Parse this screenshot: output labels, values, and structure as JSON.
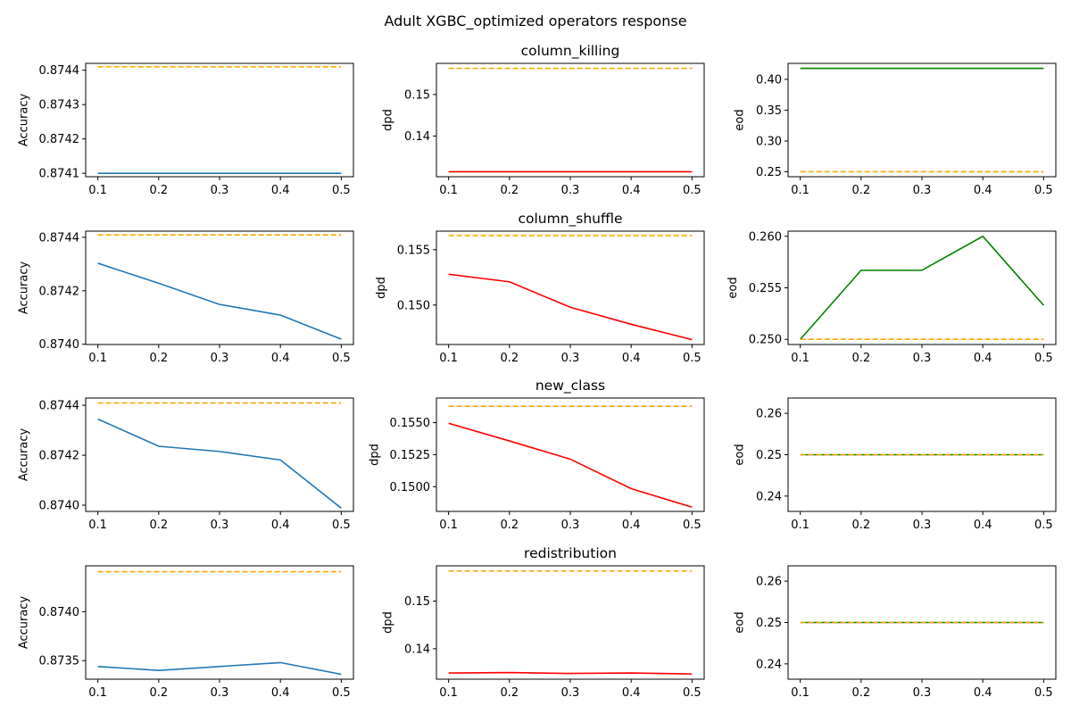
{
  "figure": {
    "title": "Adult XGBC_optimized operators response"
  },
  "colors": {
    "accuracy": "#1f77b4",
    "dpd": "#ff0000",
    "eod": "#008000",
    "baseline": "#ffa500"
  },
  "chart_data": [
    {
      "type": "line",
      "row": 0,
      "col": 0,
      "title": "",
      "xlabel": "",
      "ylabel": "Accuracy",
      "x": [
        0.1,
        0.2,
        0.3,
        0.4,
        0.5
      ],
      "xticks": [
        "0.1",
        "0.2",
        "0.3",
        "0.4",
        "0.5"
      ],
      "ylim": [
        0.87409,
        0.87442
      ],
      "yticks": [
        {
          "v": 0.8741,
          "label": "0.8741"
        },
        {
          "v": 0.8742,
          "label": "0.8742"
        },
        {
          "v": 0.8743,
          "label": "0.8743"
        },
        {
          "v": 0.8744,
          "label": "0.8744"
        }
      ],
      "series": [
        {
          "values": [
            0.8741,
            0.8741,
            0.8741,
            0.8741,
            0.8741
          ],
          "color": "#1f77b4",
          "style": "solid"
        },
        {
          "values": [
            0.87441,
            0.87441,
            0.87441,
            0.87441,
            0.87441
          ],
          "color": "#ffa500",
          "style": "dashed"
        }
      ]
    },
    {
      "type": "line",
      "row": 0,
      "col": 1,
      "title": "column_killing",
      "xlabel": "",
      "ylabel": "dpd",
      "x": [
        0.1,
        0.2,
        0.3,
        0.4,
        0.5
      ],
      "xticks": [
        "0.1",
        "0.2",
        "0.3",
        "0.4",
        "0.5"
      ],
      "ylim": [
        0.1302,
        0.1575
      ],
      "yticks": [
        {
          "v": 0.14,
          "label": "0.14"
        },
        {
          "v": 0.15,
          "label": "0.15"
        }
      ],
      "series": [
        {
          "values": [
            0.1314,
            0.1314,
            0.1314,
            0.1314,
            0.1314
          ],
          "color": "#ff0000",
          "style": "solid"
        },
        {
          "values": [
            0.1563,
            0.1563,
            0.1563,
            0.1563,
            0.1563
          ],
          "color": "#ffa500",
          "style": "dashed"
        }
      ]
    },
    {
      "type": "line",
      "row": 0,
      "col": 2,
      "title": "",
      "xlabel": "",
      "ylabel": "eod",
      "x": [
        0.1,
        0.2,
        0.3,
        0.4,
        0.5
      ],
      "xticks": [
        "0.1",
        "0.2",
        "0.3",
        "0.4",
        "0.5"
      ],
      "ylim": [
        0.242,
        0.426
      ],
      "yticks": [
        {
          "v": 0.25,
          "label": "0.25"
        },
        {
          "v": 0.3,
          "label": "0.30"
        },
        {
          "v": 0.35,
          "label": "0.35"
        },
        {
          "v": 0.4,
          "label": "0.40"
        }
      ],
      "series": [
        {
          "values": [
            0.418,
            0.418,
            0.418,
            0.418,
            0.418
          ],
          "color": "#008000",
          "style": "solid"
        },
        {
          "values": [
            0.25,
            0.25,
            0.25,
            0.25,
            0.25
          ],
          "color": "#ffa500",
          "style": "dashed"
        }
      ]
    },
    {
      "type": "line",
      "row": 1,
      "col": 0,
      "title": "",
      "xlabel": "",
      "ylabel": "Accuracy",
      "x": [
        0.1,
        0.2,
        0.3,
        0.4,
        0.5
      ],
      "xticks": [
        "0.1",
        "0.2",
        "0.3",
        "0.4",
        "0.5"
      ],
      "ylim": [
        0.873999,
        0.874423
      ],
      "yticks": [
        {
          "v": 0.874,
          "label": "0.8740"
        },
        {
          "v": 0.8742,
          "label": "0.8742"
        },
        {
          "v": 0.8744,
          "label": "0.8744"
        }
      ],
      "series": [
        {
          "values": [
            0.874303,
            0.874228,
            0.874149,
            0.874109,
            0.874019
          ],
          "color": "#1f77b4",
          "style": "solid"
        },
        {
          "values": [
            0.874409,
            0.874409,
            0.874409,
            0.874409,
            0.874409
          ],
          "color": "#ffa500",
          "style": "dashed"
        }
      ]
    },
    {
      "type": "line",
      "row": 1,
      "col": 1,
      "title": "column_shuffle",
      "xlabel": "",
      "ylabel": "dpd",
      "x": [
        0.1,
        0.2,
        0.3,
        0.4,
        0.5
      ],
      "xticks": [
        "0.1",
        "0.2",
        "0.3",
        "0.4",
        "0.5"
      ],
      "ylim": [
        0.14643,
        0.15668
      ],
      "yticks": [
        {
          "v": 0.15,
          "label": "0.150"
        },
        {
          "v": 0.155,
          "label": "0.155"
        }
      ],
      "series": [
        {
          "values": [
            0.15278,
            0.1521,
            0.1498,
            0.14826,
            0.14687
          ],
          "color": "#ff0000",
          "style": "solid"
        },
        {
          "values": [
            0.15628,
            0.15628,
            0.15628,
            0.15628,
            0.15628
          ],
          "color": "#ffa500",
          "style": "dashed"
        }
      ]
    },
    {
      "type": "line",
      "row": 1,
      "col": 2,
      "title": "",
      "xlabel": "",
      "ylabel": "eod",
      "x": [
        0.1,
        0.2,
        0.3,
        0.4,
        0.5
      ],
      "xticks": [
        "0.1",
        "0.2",
        "0.3",
        "0.4",
        "0.5"
      ],
      "ylim": [
        0.2495,
        0.2605
      ],
      "yticks": [
        {
          "v": 0.25,
          "label": "0.250"
        },
        {
          "v": 0.255,
          "label": "0.255"
        },
        {
          "v": 0.26,
          "label": "0.260"
        }
      ],
      "series": [
        {
          "values": [
            0.25,
            0.2567,
            0.2567,
            0.26,
            0.2533
          ],
          "color": "#008000",
          "style": "solid"
        },
        {
          "values": [
            0.25,
            0.25,
            0.25,
            0.25,
            0.25
          ],
          "color": "#ffa500",
          "style": "dashed"
        }
      ]
    },
    {
      "type": "line",
      "row": 2,
      "col": 0,
      "title": "",
      "xlabel": "",
      "ylabel": "Accuracy",
      "x": [
        0.1,
        0.2,
        0.3,
        0.4,
        0.5
      ],
      "xticks": [
        "0.1",
        "0.2",
        "0.3",
        "0.4",
        "0.5"
      ],
      "ylim": [
        0.873975,
        0.874429
      ],
      "yticks": [
        {
          "v": 0.874,
          "label": "0.8740"
        },
        {
          "v": 0.8742,
          "label": "0.8742"
        },
        {
          "v": 0.8744,
          "label": "0.8744"
        }
      ],
      "series": [
        {
          "values": [
            0.874345,
            0.874236,
            0.874215,
            0.874181,
            0.873988
          ],
          "color": "#1f77b4",
          "style": "solid"
        },
        {
          "values": [
            0.874409,
            0.874409,
            0.874409,
            0.874409,
            0.874409
          ],
          "color": "#ffa500",
          "style": "dashed"
        }
      ]
    },
    {
      "type": "line",
      "row": 2,
      "col": 1,
      "title": "new_class",
      "xlabel": "",
      "ylabel": "dpd",
      "x": [
        0.1,
        0.2,
        0.3,
        0.4,
        0.5
      ],
      "xticks": [
        "0.1",
        "0.2",
        "0.3",
        "0.4",
        "0.5"
      ],
      "ylim": [
        0.14807,
        0.15692
      ],
      "yticks": [
        {
          "v": 0.15,
          "label": "0.1500"
        },
        {
          "v": 0.1525,
          "label": "0.1525"
        },
        {
          "v": 0.155,
          "label": "0.1550"
        }
      ],
      "series": [
        {
          "values": [
            0.15495,
            0.15357,
            0.15215,
            0.14985,
            0.1484
          ],
          "color": "#ff0000",
          "style": "solid"
        },
        {
          "values": [
            0.15628,
            0.15628,
            0.15628,
            0.15628,
            0.15628
          ],
          "color": "#ffa500",
          "style": "dashed"
        }
      ]
    },
    {
      "type": "line",
      "row": 2,
      "col": 2,
      "title": "",
      "xlabel": "",
      "ylabel": "eod",
      "x": [
        0.1,
        0.2,
        0.3,
        0.4,
        0.5
      ],
      "xticks": [
        "0.1",
        "0.2",
        "0.3",
        "0.4",
        "0.5"
      ],
      "ylim": [
        0.2363,
        0.2637
      ],
      "yticks": [
        {
          "v": 0.24,
          "label": "0.24"
        },
        {
          "v": 0.25,
          "label": "0.25"
        },
        {
          "v": 0.26,
          "label": "0.26"
        }
      ],
      "series": [
        {
          "values": [
            0.25,
            0.25,
            0.25,
            0.25,
            0.25
          ],
          "color": "#008000",
          "style": "solid"
        },
        {
          "values": [
            0.25,
            0.25,
            0.25,
            0.25,
            0.25
          ],
          "color": "#ffa500",
          "style": "dashed"
        }
      ]
    },
    {
      "type": "line",
      "row": 3,
      "col": 0,
      "title": "",
      "xlabel": "",
      "ylabel": "Accuracy",
      "x": [
        0.1,
        0.2,
        0.3,
        0.4,
        0.5
      ],
      "xticks": [
        "0.1",
        "0.2",
        "0.3",
        "0.4",
        "0.5"
      ],
      "ylim": [
        0.87331,
        0.87447
      ],
      "yticks": [
        {
          "v": 0.8735,
          "label": "0.8735"
        },
        {
          "v": 0.874,
          "label": "0.8740"
        }
      ],
      "series": [
        {
          "values": [
            0.87344,
            0.8734,
            0.87344,
            0.87348,
            0.87336
          ],
          "color": "#1f77b4",
          "style": "solid"
        },
        {
          "values": [
            0.87441,
            0.87441,
            0.87441,
            0.87441,
            0.87441
          ],
          "color": "#ffa500",
          "style": "dashed"
        }
      ]
    },
    {
      "type": "line",
      "row": 3,
      "col": 1,
      "title": "redistribution",
      "xlabel": "",
      "ylabel": "dpd",
      "x": [
        0.1,
        0.2,
        0.3,
        0.4,
        0.5
      ],
      "xticks": [
        "0.1",
        "0.2",
        "0.3",
        "0.4",
        "0.5"
      ],
      "ylim": [
        0.1336,
        0.1574
      ],
      "yticks": [
        {
          "v": 0.14,
          "label": "0.14"
        },
        {
          "v": 0.15,
          "label": "0.15"
        }
      ],
      "series": [
        {
          "values": [
            0.1349,
            0.135,
            0.1348,
            0.1349,
            0.1347
          ],
          "color": "#ff0000",
          "style": "solid"
        },
        {
          "values": [
            0.1563,
            0.1563,
            0.1563,
            0.1563,
            0.1563
          ],
          "color": "#ffa500",
          "style": "dashed"
        }
      ]
    },
    {
      "type": "line",
      "row": 3,
      "col": 2,
      "title": "",
      "xlabel": "",
      "ylabel": "eod",
      "x": [
        0.1,
        0.2,
        0.3,
        0.4,
        0.5
      ],
      "xticks": [
        "0.1",
        "0.2",
        "0.3",
        "0.4",
        "0.5"
      ],
      "ylim": [
        0.2363,
        0.2637
      ],
      "yticks": [
        {
          "v": 0.24,
          "label": "0.24"
        },
        {
          "v": 0.25,
          "label": "0.25"
        },
        {
          "v": 0.26,
          "label": "0.26"
        }
      ],
      "series": [
        {
          "values": [
            0.25,
            0.25,
            0.25,
            0.25,
            0.25
          ],
          "color": "#008000",
          "style": "solid"
        },
        {
          "values": [
            0.25,
            0.25,
            0.25,
            0.25,
            0.25
          ],
          "color": "#ffa500",
          "style": "dashed"
        }
      ]
    }
  ]
}
